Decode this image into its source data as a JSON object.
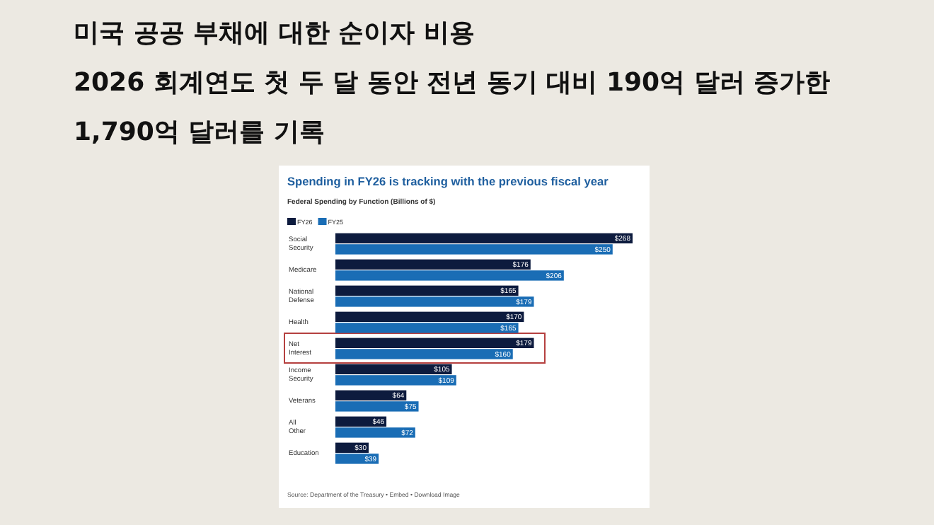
{
  "chart_data": {
    "type": "bar",
    "orientation": "horizontal",
    "title": "미국 공공 부채에 대한 순이자 비용",
    "subtitle": "2026 회계연도 첫 두 달 동안 전년 동기 대비 190억 달러 증가한 1,790억 달러를 기록",
    "annotations": [
      "Spending in FY26 is tracking with the previous fiscal year",
      "Federal Spending by Function (Billions of $)",
      "Source: Department of the Treasury • Embed • Download Image"
    ],
    "categories": [
      "Social Security",
      "Medicare",
      "National Defense",
      "Health",
      "Net Interest",
      "Income Security",
      "Veterans",
      "All Other",
      "Education"
    ],
    "series": [
      {
        "name": "FY26",
        "color": "#0d1b3e",
        "values": [
          268,
          176,
          165,
          170,
          179,
          105,
          64,
          46,
          30
        ],
        "value_labels": [
          "$268",
          "$176",
          "$165",
          "$170",
          "$179",
          "$105",
          "$64",
          "$46",
          "$30"
        ]
      },
      {
        "name": "FY25",
        "color": "#1a6db5",
        "values": [
          250,
          206,
          179,
          165,
          160,
          109,
          75,
          72,
          39
        ],
        "value_labels": [
          "$250",
          "$206",
          "$179",
          "$165",
          "$160",
          "$109",
          "$75",
          "$72",
          "$39"
        ]
      }
    ],
    "legend": "top left"
  }
}
